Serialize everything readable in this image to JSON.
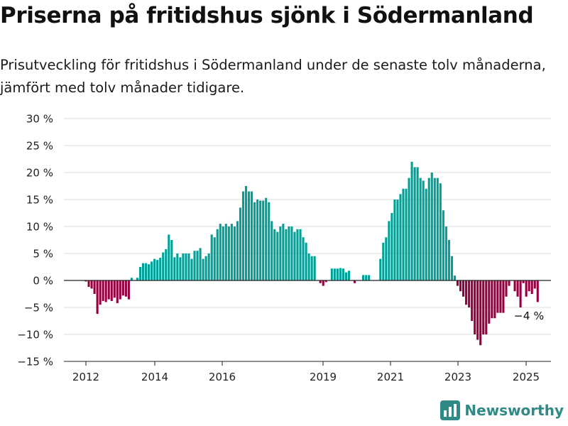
{
  "title": "Priserna på fritidshus sjönk i Södermanland",
  "subtitle": "Prisutveckling för fritidshus i Södermanland under de senaste tolv månaderna, jämfört med tolv månader tidigare.",
  "brand": {
    "name": "Newsworthy",
    "icon": "newsworthy-logo-icon"
  },
  "colors": {
    "positive": "#00a096",
    "negative": "#940040",
    "grid": "#dddddd",
    "zero_line": "#222222"
  },
  "chart_data": {
    "type": "bar",
    "y_unit": "%",
    "ylim": [
      -15,
      30
    ],
    "y_ticks": [
      30,
      25,
      20,
      15,
      10,
      5,
      0,
      -5,
      -10,
      -15
    ],
    "y_tick_labels": [
      "30 %",
      "25 %",
      "20 %",
      "15 %",
      "10 %",
      "5 %",
      "0 %",
      "−5 %",
      "−10 %",
      "−15 %"
    ],
    "x_tick_labels": [
      "2012",
      "2014",
      "2016",
      "2019",
      "2021",
      "2023",
      "2025"
    ],
    "grid": true,
    "annotation": "−4 %",
    "values": [
      -0.2,
      -1.2,
      -1.5,
      -2.5,
      -6.2,
      -4.5,
      -3.8,
      -4.0,
      -3.5,
      -3.8,
      -3.2,
      -4.2,
      -3.5,
      -2.8,
      -3.0,
      -3.5,
      0.5,
      0,
      0.5,
      2.5,
      3.2,
      3.2,
      3.0,
      3.5,
      4.0,
      3.8,
      4.2,
      5.2,
      5.8,
      8.5,
      7.5,
      4.3,
      5.0,
      4.3,
      5.0,
      5.0,
      5.0,
      4.0,
      5.5,
      5.5,
      6.0,
      4.0,
      4.5,
      5.0,
      8.5,
      8.0,
      9.5,
      10.5,
      10.0,
      10.5,
      10.0,
      10.5,
      10.0,
      11.0,
      13.5,
      16.5,
      17.5,
      16.5,
      16.5,
      14.5,
      15.0,
      14.8,
      14.8,
      15.3,
      14.5,
      11.0,
      9.5,
      9.0,
      10.0,
      10.5,
      9.5,
      10.0,
      10.0,
      9.0,
      9.5,
      9.5,
      8.0,
      7.0,
      5.0,
      4.5,
      4.5,
      0,
      -0.5,
      -1.0,
      -0.3,
      0,
      2.2,
      2.2,
      2.2,
      2.3,
      2.2,
      1.5,
      1.8,
      0,
      -0.5,
      0,
      0,
      1.0,
      1.0,
      1.0,
      0,
      0,
      0,
      4.0,
      7.0,
      8.0,
      11.0,
      12.5,
      15.0,
      15.0,
      16.0,
      17.0,
      17.0,
      19.0,
      22.0,
      21.0,
      21.0,
      19.0,
      18.5,
      17.0,
      19.0,
      20.0,
      19.0,
      19.0,
      18.0,
      13.0,
      10.0,
      7.5,
      4.5,
      0.9,
      -1.0,
      -2.0,
      -3.0,
      -4.5,
      -5.0,
      -7.5,
      -10.0,
      -11.0,
      -12.0,
      -10.0,
      -10.0,
      -8.0,
      -7.0,
      -7.0,
      -6.0,
      -6.0,
      -6.0,
      -3.0,
      -1.0,
      0,
      -2.0,
      -3.0,
      -5.0,
      -0.5,
      -3.0,
      -2.0,
      -2.5,
      -1.5,
      -4.0
    ]
  }
}
